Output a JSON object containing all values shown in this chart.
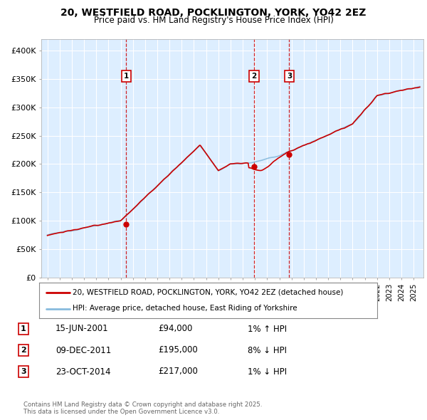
{
  "title": "20, WESTFIELD ROAD, POCKLINGTON, YORK, YO42 2EZ",
  "subtitle": "Price paid vs. HM Land Registry's House Price Index (HPI)",
  "legend_line1": "20, WESTFIELD ROAD, POCKLINGTON, YORK, YO42 2EZ (detached house)",
  "legend_line2": "HPI: Average price, detached house, East Riding of Yorkshire",
  "footer": "Contains HM Land Registry data © Crown copyright and database right 2025.\nThis data is licensed under the Open Government Licence v3.0.",
  "sale_points": [
    {
      "label": "1",
      "date_x": 2001.45,
      "price": 94000,
      "date_str": "15-JUN-2001",
      "price_str": "£94,000",
      "pct": "1% ↑ HPI"
    },
    {
      "label": "2",
      "date_x": 2011.93,
      "price": 195000,
      "date_str": "09-DEC-2011",
      "price_str": "£195,000",
      "pct": "8% ↓ HPI"
    },
    {
      "label": "3",
      "date_x": 2014.81,
      "price": 217000,
      "date_str": "23-OCT-2014",
      "price_str": "£217,000",
      "pct": "1% ↓ HPI"
    }
  ],
  "vline_color": "#cc0000",
  "red_line_color": "#cc0000",
  "blue_line_color": "#88bbdd",
  "chart_bg_color": "#ddeeff",
  "background_color": "#ffffff",
  "grid_color": "#ffffff",
  "ylim": [
    0,
    420000
  ],
  "yticks": [
    0,
    50000,
    100000,
    150000,
    200000,
    250000,
    300000,
    350000,
    400000
  ],
  "ytick_labels": [
    "£0",
    "£50K",
    "£100K",
    "£150K",
    "£200K",
    "£250K",
    "£300K",
    "£350K",
    "£400K"
  ],
  "xlim": [
    1994.5,
    2025.8
  ],
  "xticks": [
    1995,
    1996,
    1997,
    1998,
    1999,
    2000,
    2001,
    2002,
    2003,
    2004,
    2005,
    2006,
    2007,
    2008,
    2009,
    2010,
    2011,
    2012,
    2013,
    2014,
    2015,
    2016,
    2017,
    2018,
    2019,
    2020,
    2021,
    2022,
    2023,
    2024,
    2025
  ]
}
